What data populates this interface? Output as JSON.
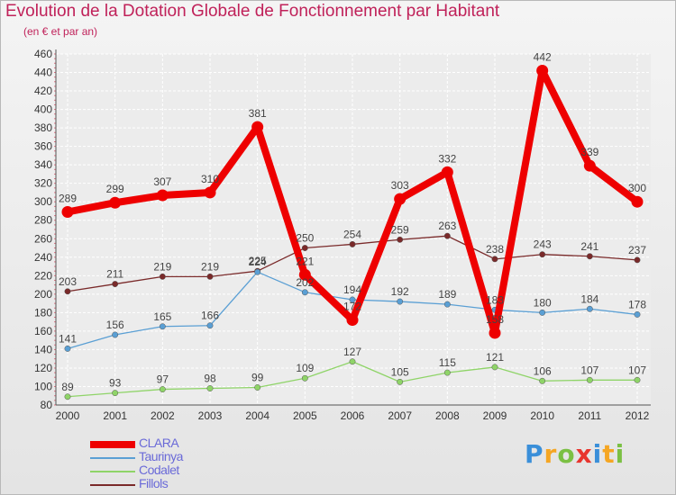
{
  "header": {
    "title": "Evolution de la Dotation Globale de Fonctionnement par Habitant",
    "subtitle": "(en € et par an)"
  },
  "logo": {
    "letters": [
      "P",
      "r",
      "o",
      "x",
      "i",
      "t",
      "i"
    ],
    "colors": [
      "#3a8fd9",
      "#f5a623",
      "#7bc043",
      "#e8352e",
      "#3a8fd9",
      "#f5a623",
      "#7bc043"
    ]
  },
  "chart_data": {
    "type": "line",
    "title": "Evolution de la Dotation Globale de Fonctionnement par Habitant",
    "ylabel": "(en € et par an)",
    "xlabel": "",
    "ylim": [
      80,
      460
    ],
    "yticks": [
      80,
      100,
      120,
      140,
      160,
      180,
      200,
      220,
      240,
      260,
      280,
      300,
      320,
      340,
      360,
      380,
      400,
      420,
      440,
      460
    ],
    "x": [
      "2000",
      "2001",
      "2002",
      "2003",
      "2004",
      "2005",
      "2006",
      "2007",
      "2008",
      "2009",
      "2010",
      "2011",
      "2012"
    ],
    "grid": true,
    "legend_position": "bottom-left",
    "series": [
      {
        "name": "Fillols",
        "color": "#7a2a2a",
        "values": [
          203,
          211,
          219,
          219,
          225,
          250,
          254,
          259,
          263,
          238,
          243,
          241,
          237
        ]
      },
      {
        "name": "Taurinya",
        "color": "#5a9fd4",
        "values": [
          141,
          156,
          165,
          166,
          224,
          202,
          194,
          192,
          189,
          183,
          180,
          184,
          178
        ]
      },
      {
        "name": "Codalet",
        "color": "#8fd468",
        "values": [
          89,
          93,
          97,
          98,
          99,
          109,
          127,
          105,
          115,
          121,
          106,
          107,
          107
        ]
      },
      {
        "name": "CLARA",
        "color": "#ee0000",
        "values": [
          289,
          299,
          307,
          310,
          381,
          221,
          172,
          303,
          332,
          158,
          442,
          339,
          300
        ]
      }
    ],
    "legend_order": [
      "CLARA",
      "Taurinya",
      "Codalet",
      "Fillols"
    ]
  }
}
